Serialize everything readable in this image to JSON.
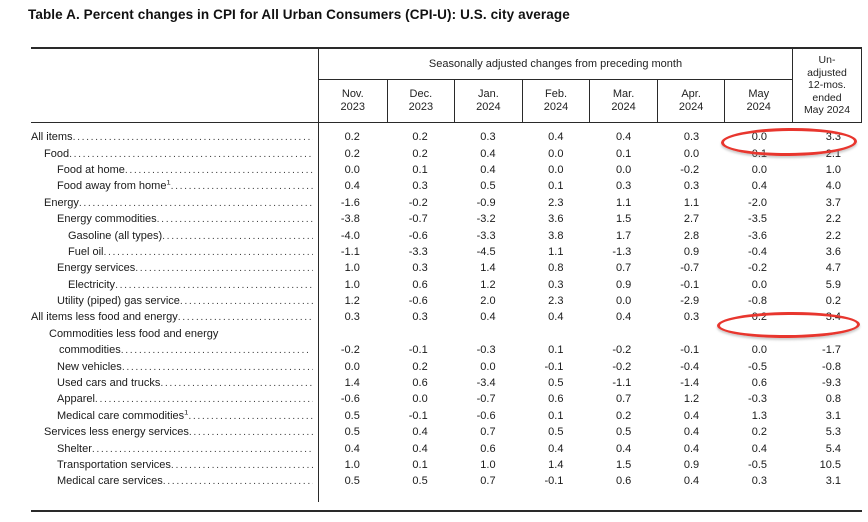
{
  "page": {
    "title": "Table A. Percent changes in CPI for All Urban Consumers (CPI-U): U.S. city average"
  },
  "table": {
    "group_header": "Seasonally adjusted changes from preceding month",
    "unadjusted_header_lines": [
      "Un-",
      "adjusted",
      "12-mos.",
      "ended",
      "May 2024"
    ],
    "month_columns": [
      {
        "month": "Nov.",
        "year": "2023"
      },
      {
        "month": "Dec.",
        "year": "2023"
      },
      {
        "month": "Jan.",
        "year": "2024"
      },
      {
        "month": "Feb.",
        "year": "2024"
      },
      {
        "month": "Mar.",
        "year": "2024"
      },
      {
        "month": "Apr.",
        "year": "2024"
      },
      {
        "month": "May",
        "year": "2024"
      }
    ],
    "rows": [
      {
        "label": "All items",
        "indent": 0,
        "values": [
          "0.2",
          "0.2",
          "0.3",
          "0.4",
          "0.4",
          "0.3",
          "0.0",
          "3.3"
        ]
      },
      {
        "label": "Food",
        "indent": 1,
        "values": [
          "0.2",
          "0.2",
          "0.4",
          "0.0",
          "0.1",
          "0.0",
          "0.1",
          "2.1"
        ]
      },
      {
        "label": "Food at home",
        "indent": 2,
        "values": [
          "0.0",
          "0.1",
          "0.4",
          "0.0",
          "0.0",
          "-0.2",
          "0.0",
          "1.0"
        ]
      },
      {
        "label": "Food away from home",
        "sup": "1",
        "indent": 2,
        "values": [
          "0.4",
          "0.3",
          "0.5",
          "0.1",
          "0.3",
          "0.3",
          "0.4",
          "4.0"
        ]
      },
      {
        "label": "Energy",
        "indent": 1,
        "values": [
          "-1.6",
          "-0.2",
          "-0.9",
          "2.3",
          "1.1",
          "1.1",
          "-2.0",
          "3.7"
        ]
      },
      {
        "label": "Energy commodities",
        "indent": 2,
        "values": [
          "-3.8",
          "-0.7",
          "-3.2",
          "3.6",
          "1.5",
          "2.7",
          "-3.5",
          "2.2"
        ]
      },
      {
        "label": "Gasoline (all types)",
        "indent": 3,
        "values": [
          "-4.0",
          "-0.6",
          "-3.3",
          "3.8",
          "1.7",
          "2.8",
          "-3.6",
          "2.2"
        ]
      },
      {
        "label": "Fuel oil",
        "indent": 3,
        "values": [
          "-1.1",
          "-3.3",
          "-4.5",
          "1.1",
          "-1.3",
          "0.9",
          "-0.4",
          "3.6"
        ]
      },
      {
        "label": "Energy services",
        "indent": 2,
        "values": [
          "1.0",
          "0.3",
          "1.4",
          "0.8",
          "0.7",
          "-0.7",
          "-0.2",
          "4.7"
        ]
      },
      {
        "label": "Electricity",
        "indent": 3,
        "values": [
          "1.0",
          "0.6",
          "1.2",
          "0.3",
          "0.9",
          "-0.1",
          "0.0",
          "5.9"
        ]
      },
      {
        "label": "Utility (piped) gas service",
        "indent": 2,
        "values": [
          "1.2",
          "-0.6",
          "2.0",
          "2.3",
          "0.0",
          "-2.9",
          "-0.8",
          "0.2"
        ]
      },
      {
        "label": "All items less food and energy",
        "indent": 0,
        "values": [
          "0.3",
          "0.3",
          "0.4",
          "0.4",
          "0.4",
          "0.3",
          "0.2",
          "3.4"
        ]
      },
      {
        "label": "Commodities less food and energy",
        "label2": "commodities",
        "indent": 1,
        "values": [
          "-0.2",
          "-0.1",
          "-0.3",
          "0.1",
          "-0.2",
          "-0.1",
          "0.0",
          "-1.7"
        ]
      },
      {
        "label": "New vehicles",
        "indent": 2,
        "values": [
          "0.0",
          "0.2",
          "0.0",
          "-0.1",
          "-0.2",
          "-0.4",
          "-0.5",
          "-0.8"
        ]
      },
      {
        "label": "Used cars and trucks",
        "indent": 2,
        "values": [
          "1.4",
          "0.6",
          "-3.4",
          "0.5",
          "-1.1",
          "-1.4",
          "0.6",
          "-9.3"
        ]
      },
      {
        "label": "Apparel",
        "indent": 2,
        "values": [
          "-0.6",
          "0.0",
          "-0.7",
          "0.6",
          "0.7",
          "1.2",
          "-0.3",
          "0.8"
        ]
      },
      {
        "label": "Medical care commodities",
        "sup": "1",
        "indent": 2,
        "values": [
          "0.5",
          "-0.1",
          "-0.6",
          "0.1",
          "0.2",
          "0.4",
          "1.3",
          "3.1"
        ]
      },
      {
        "label": "Services less energy services",
        "indent": 1,
        "values": [
          "0.5",
          "0.4",
          "0.7",
          "0.5",
          "0.5",
          "0.4",
          "0.2",
          "5.3"
        ]
      },
      {
        "label": "Shelter",
        "indent": 2,
        "values": [
          "0.4",
          "0.4",
          "0.6",
          "0.4",
          "0.4",
          "0.4",
          "0.4",
          "5.4"
        ]
      },
      {
        "label": "Transportation services",
        "indent": 2,
        "values": [
          "1.0",
          "0.1",
          "1.0",
          "1.4",
          "1.5",
          "0.9",
          "-0.5",
          "10.5"
        ]
      },
      {
        "label": "Medical care services",
        "indent": 2,
        "values": [
          "0.5",
          "0.5",
          "0.7",
          "-0.1",
          "0.6",
          "0.4",
          "0.3",
          "3.1"
        ]
      }
    ]
  },
  "annotations": {
    "circle_color": "#e8362e",
    "circles": [
      {
        "row": "All items",
        "columns": [
          "May 2024",
          "Unadjusted 12-mos. ended May 2024"
        ],
        "values": [
          "0.0",
          "3.3"
        ]
      },
      {
        "row": "All items less food and energy",
        "columns": [
          "May 2024",
          "Unadjusted 12-mos. ended May 2024"
        ],
        "values": [
          "0.2",
          "3.4"
        ]
      }
    ]
  }
}
